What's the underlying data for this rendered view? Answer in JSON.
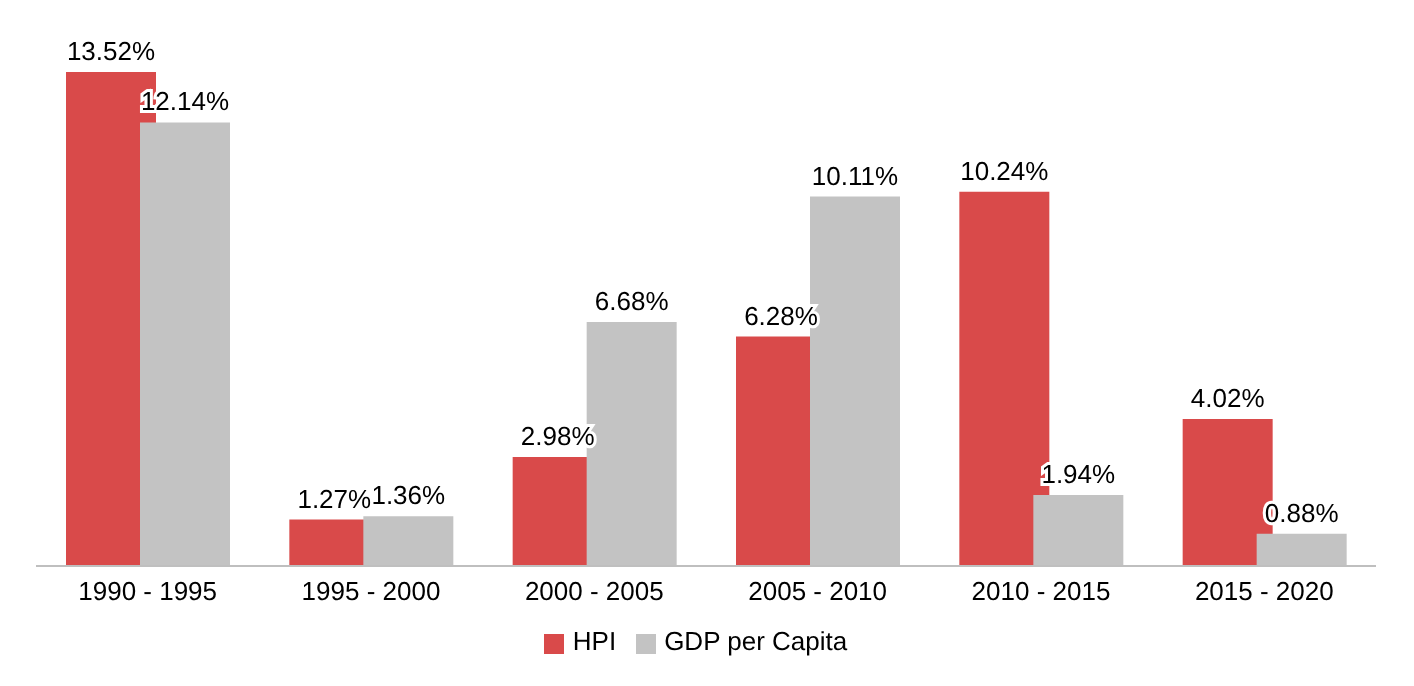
{
  "chart_data": {
    "type": "bar",
    "categories": [
      "1990 - 1995",
      "1995 - 2000",
      "2000 - 2005",
      "2005 - 2010",
      "2010 - 2015",
      "2015 - 2020"
    ],
    "series": [
      {
        "name": "HPI",
        "color": "#d94a4a",
        "values": [
          13.52,
          1.27,
          2.98,
          6.28,
          10.24,
          4.02
        ],
        "value_labels": [
          "13.52%",
          "1.27%",
          "2.98%",
          "6.28%",
          "10.24%",
          "4.02%"
        ]
      },
      {
        "name": "GDP per Capita",
        "color": "#c3c3c3",
        "values": [
          12.14,
          1.36,
          6.68,
          10.11,
          1.94,
          0.88
        ],
        "value_labels": [
          "12.14%",
          "1.36%",
          "6.68%",
          "10.11%",
          "1.94%",
          "0.88%"
        ]
      }
    ],
    "legend": "bottom",
    "grid": false
  }
}
